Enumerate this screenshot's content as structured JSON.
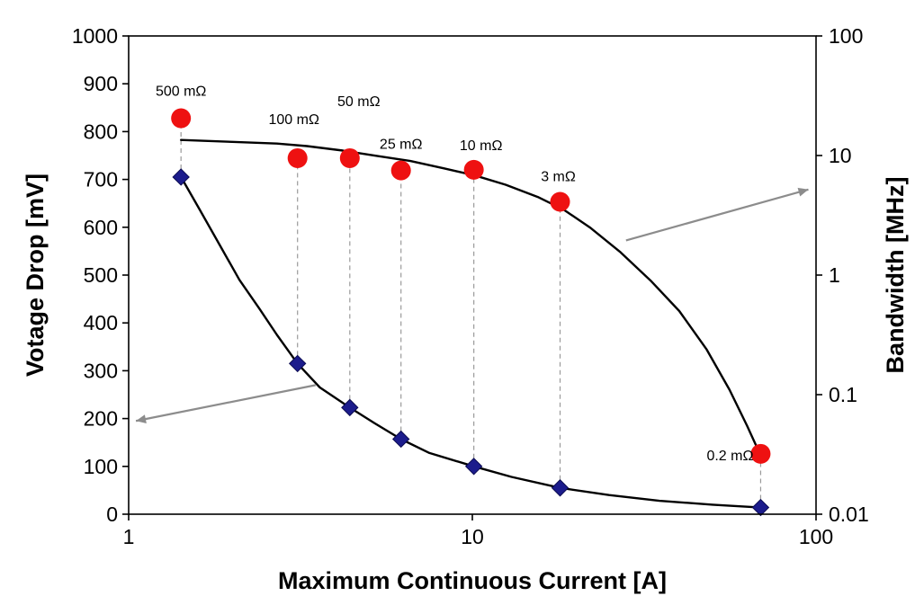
{
  "chart_data": {
    "type": "scatter",
    "title": "",
    "xlabel": "Maximum Continuous Current [A]",
    "ylabel_left": "Votage Drop [mV]",
    "ylabel_right": "Bandwidth [MHz]",
    "x_scale": "log",
    "xlim": [
      1,
      100
    ],
    "ylim_left": [
      0,
      1000
    ],
    "ylim_right": [
      0.01,
      100
    ],
    "y_right_scale": "log",
    "x_ticks": [
      "1",
      "10",
      "100"
    ],
    "y_left_ticks": [
      "0",
      "100",
      "200",
      "300",
      "400",
      "500",
      "600",
      "700",
      "800",
      "900",
      "1000"
    ],
    "y_right_ticks": [
      "0.01",
      "0.1",
      "1",
      "10",
      "100"
    ],
    "grid": false,
    "legend": "none",
    "colors": {
      "voltage_marker": "#1c1c8c",
      "bandwidth_marker": "#ee1111",
      "fit_line": "#000000",
      "guide_line": "#9a9a9a",
      "arrow": "#8c8c8c"
    },
    "series": [
      {
        "axis": "left",
        "marker": "diamond",
        "points": [
          {
            "x": 1.42,
            "y": 705
          },
          {
            "x": 3.1,
            "y": 315
          },
          {
            "x": 4.4,
            "y": 223
          },
          {
            "x": 6.2,
            "y": 157
          },
          {
            "x": 10.1,
            "y": 100
          },
          {
            "x": 18.0,
            "y": 55
          },
          {
            "x": 69.0,
            "y": 14
          }
        ]
      },
      {
        "axis": "right",
        "marker": "circle",
        "points": [
          {
            "x": 1.42,
            "y": 20.5,
            "label": "500 mΩ"
          },
          {
            "x": 3.1,
            "y": 9.5,
            "label": "100 mΩ"
          },
          {
            "x": 4.4,
            "y": 9.5,
            "label": "50 mΩ"
          },
          {
            "x": 6.2,
            "y": 7.5,
            "label": "25 mΩ"
          },
          {
            "x": 10.1,
            "y": 7.6,
            "label": "10 mΩ"
          },
          {
            "x": 18.0,
            "y": 4.1,
            "label": "3 mΩ"
          },
          {
            "x": 69.0,
            "y": 0.032,
            "label": "0.2 mΩ"
          }
        ]
      }
    ],
    "trend_lines": [
      {
        "axis": "left",
        "points": [
          [
            1.42,
            705
          ],
          [
            1.6,
            640
          ],
          [
            1.85,
            560
          ],
          [
            2.1,
            490
          ],
          [
            2.4,
            430
          ],
          [
            2.7,
            375
          ],
          [
            3.1,
            315
          ],
          [
            3.6,
            265
          ],
          [
            4.4,
            223
          ],
          [
            5.2,
            190
          ],
          [
            6.2,
            157
          ],
          [
            7.5,
            128
          ],
          [
            10.1,
            100
          ],
          [
            13,
            78
          ],
          [
            18,
            55
          ],
          [
            25,
            40
          ],
          [
            35,
            28
          ],
          [
            50,
            20
          ],
          [
            69,
            14
          ]
        ]
      },
      {
        "axis": "right",
        "points": [
          [
            1.42,
            13.5
          ],
          [
            2,
            13.0
          ],
          [
            2.7,
            12.6
          ],
          [
            3.3,
            12.0
          ],
          [
            4.2,
            11.0
          ],
          [
            5.3,
            9.9
          ],
          [
            6.6,
            9.0
          ],
          [
            8.3,
            7.8
          ],
          [
            10.2,
            6.8
          ],
          [
            12.5,
            5.7
          ],
          [
            15.5,
            4.5
          ],
          [
            18.5,
            3.5
          ],
          [
            22,
            2.5
          ],
          [
            27,
            1.55
          ],
          [
            33,
            0.9
          ],
          [
            40,
            0.5
          ],
          [
            48,
            0.24
          ],
          [
            56,
            0.11
          ],
          [
            63,
            0.055
          ],
          [
            69,
            0.031
          ]
        ]
      }
    ],
    "arrows": [
      {
        "from": {
          "x": 3.5,
          "y": 270
        },
        "to": {
          "x": 1.05,
          "y": 195
        }
      },
      {
        "from": {
          "x": 28,
          "y": 1.95
        },
        "to": {
          "x": 95,
          "y": 5.2
        }
      }
    ]
  }
}
